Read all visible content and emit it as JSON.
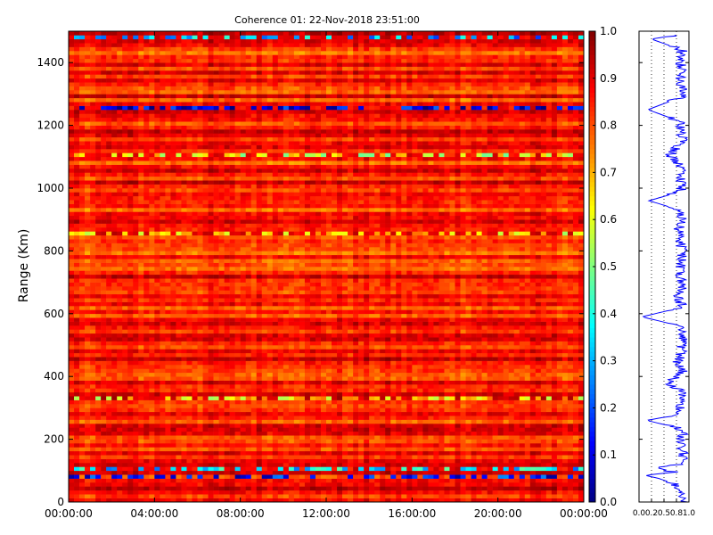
{
  "chart_data": [
    {
      "type": "heatmap",
      "title": "Coherence 01: 22-Nov-2018 23:51:00",
      "xlabel": "",
      "ylabel": "Range (Km)",
      "x_ticks": [
        "00:00:00",
        "04:00:00",
        "08:00:00",
        "12:00:00",
        "16:00:00",
        "20:00:00",
        "00:00:00"
      ],
      "x_range": [
        "00:00:00",
        "24:00:00"
      ],
      "y_ticks": [
        0,
        200,
        400,
        600,
        800,
        1000,
        1200,
        1400
      ],
      "ylim": [
        0,
        1500
      ],
      "colormap": "jet",
      "colorbar": {
        "range": [
          0.0,
          1.0
        ],
        "ticks": [
          "0.0",
          "0.1",
          "0.2",
          "0.3",
          "0.4",
          "0.5",
          "0.6",
          "0.7",
          "0.8",
          "0.9",
          "1.0"
        ]
      },
      "typical_value": 0.85,
      "low_coherence_ranges_km": [
        {
          "range": 1475,
          "value": 0.3
        },
        {
          "range": 1250,
          "value": 0.1
        },
        {
          "range": 1105,
          "value": 0.6
        },
        {
          "range": 860,
          "value": 0.65
        },
        {
          "range": 330,
          "value": 0.65
        },
        {
          "range": 110,
          "value": 0.35
        },
        {
          "range": 85,
          "value": 0.15
        }
      ]
    },
    {
      "type": "line",
      "title": "",
      "xlabel": "",
      "ylabel": "",
      "x_ticks": [
        "0.0",
        "0.2",
        "0.5",
        "0.8",
        "1.0"
      ],
      "xlim": [
        0,
        1
      ],
      "ylim": [
        0,
        1500
      ],
      "grid": "vertical dotted",
      "series": [
        {
          "color": "#0000ff",
          "profile": [
            [
              0,
              0.88
            ],
            [
              30,
              0.8
            ],
            [
              55,
              0.75
            ],
            [
              75,
              0.4
            ],
            [
              85,
              0.12
            ],
            [
              95,
              0.7
            ],
            [
              110,
              0.35
            ],
            [
              120,
              0.85
            ],
            [
              150,
              0.9
            ],
            [
              180,
              0.84
            ],
            [
              210,
              0.88
            ],
            [
              235,
              0.82
            ],
            [
              260,
              0.15
            ],
            [
              280,
              0.85
            ],
            [
              320,
              0.82
            ],
            [
              350,
              0.88
            ],
            [
              380,
              0.6
            ],
            [
              420,
              0.88
            ],
            [
              440,
              0.75
            ],
            [
              480,
              0.86
            ],
            [
              520,
              0.88
            ],
            [
              560,
              0.84
            ],
            [
              590,
              0.06
            ],
            [
              620,
              0.85
            ],
            [
              660,
              0.8
            ],
            [
              700,
              0.88
            ],
            [
              740,
              0.82
            ],
            [
              780,
              0.86
            ],
            [
              820,
              0.84
            ],
            [
              860,
              0.78
            ],
            [
              900,
              0.86
            ],
            [
              930,
              0.82
            ],
            [
              960,
              0.2
            ],
            [
              990,
              0.86
            ],
            [
              1020,
              0.84
            ],
            [
              1060,
              0.86
            ],
            [
              1105,
              0.62
            ],
            [
              1150,
              0.86
            ],
            [
              1180,
              0.84
            ],
            [
              1210,
              0.86
            ],
            [
              1250,
              0.18
            ],
            [
              1290,
              0.84
            ],
            [
              1320,
              0.86
            ],
            [
              1350,
              0.82
            ],
            [
              1380,
              0.87
            ],
            [
              1410,
              0.83
            ],
            [
              1440,
              0.86
            ],
            [
              1475,
              0.25
            ],
            [
              1490,
              0.85
            ]
          ]
        }
      ]
    }
  ]
}
